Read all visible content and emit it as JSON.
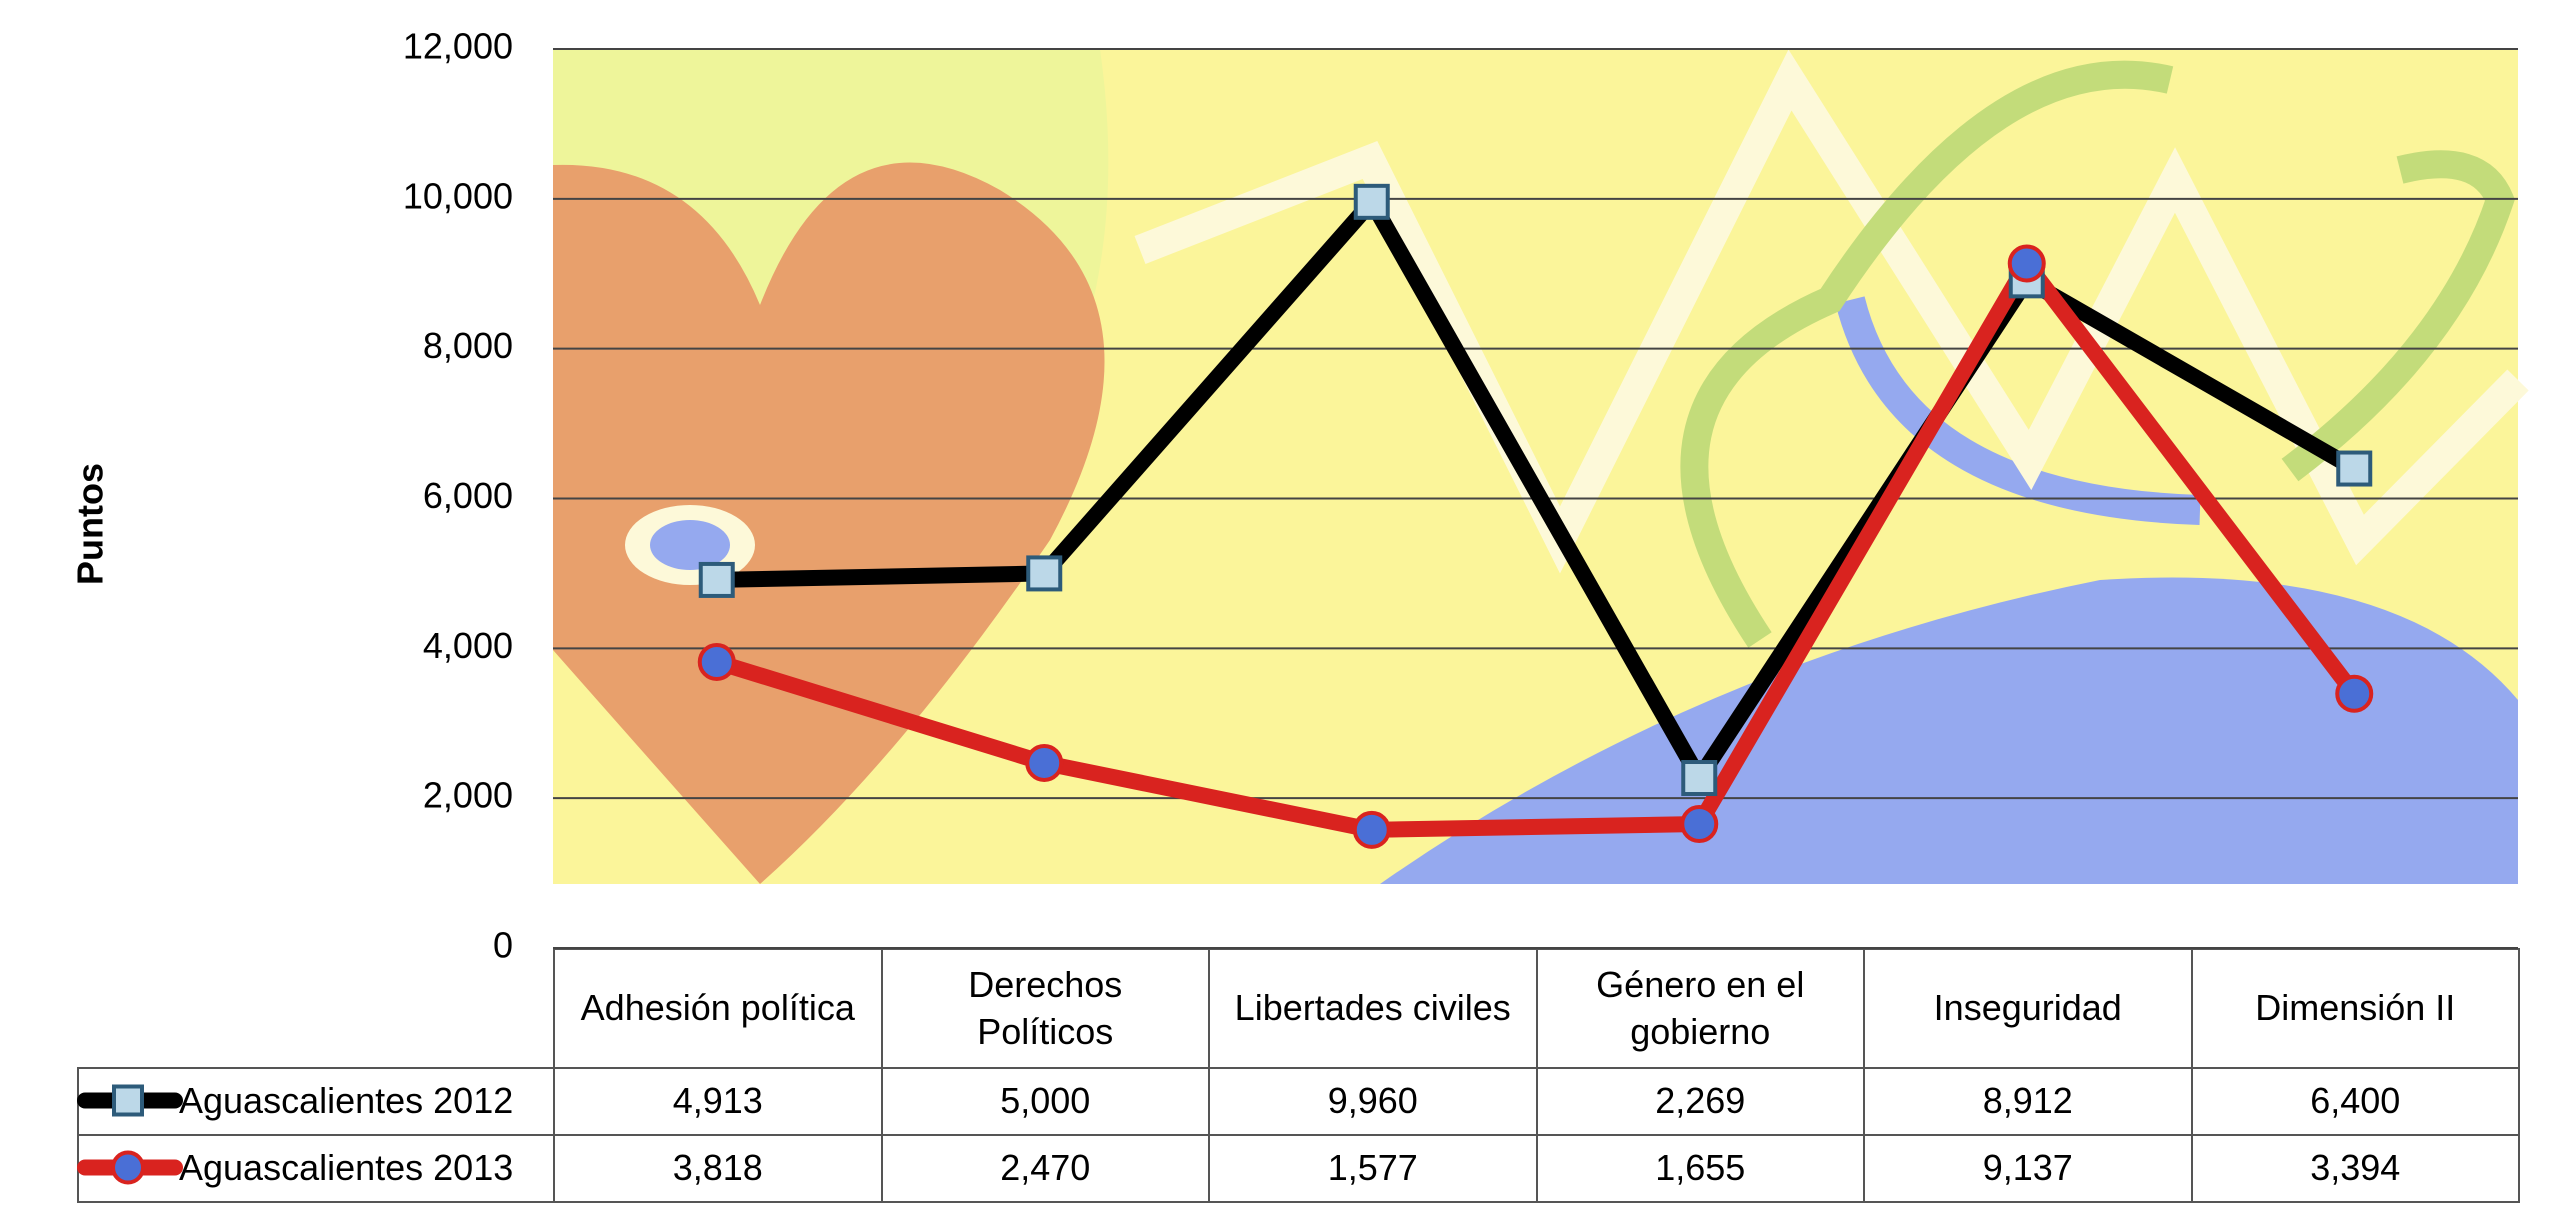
{
  "chart_data": {
    "type": "line",
    "y_label": "Puntos",
    "categories": [
      "Adhesión política",
      "Derechos Políticos",
      "Libertades civiles",
      "Género en el gobierno",
      "Inseguridad",
      "Dimensión II"
    ],
    "series": [
      {
        "name": "Aguascalientes 2012",
        "color": "#000000",
        "marker": "square",
        "values": [
          4913,
          5000,
          9960,
          2269,
          8912,
          6400
        ],
        "value_labels": [
          "4,913",
          "5,000",
          "9,960",
          "2,269",
          "8,912",
          "6,400"
        ]
      },
      {
        "name": "Aguascalientes 2013",
        "color": "#d9231f",
        "marker": "circle",
        "values": [
          3818,
          2470,
          1577,
          1655,
          9137,
          3394
        ],
        "value_labels": [
          "3,818",
          "2,470",
          "1,577",
          "1,655",
          "9,137",
          "3,394"
        ]
      }
    ],
    "ylim": [
      0,
      12000
    ],
    "yticks": [
      0,
      {
        "value": 2000,
        "label": "2,000"
      },
      {
        "value": 4000,
        "label": "4,000"
      },
      {
        "value": 6000,
        "label": "6,000"
      },
      {
        "value": 8000,
        "label": "8,000"
      },
      {
        "value": 10000,
        "label": "10,000"
      },
      {
        "value": 12000,
        "label": "12,000"
      }
    ],
    "grid": true
  }
}
